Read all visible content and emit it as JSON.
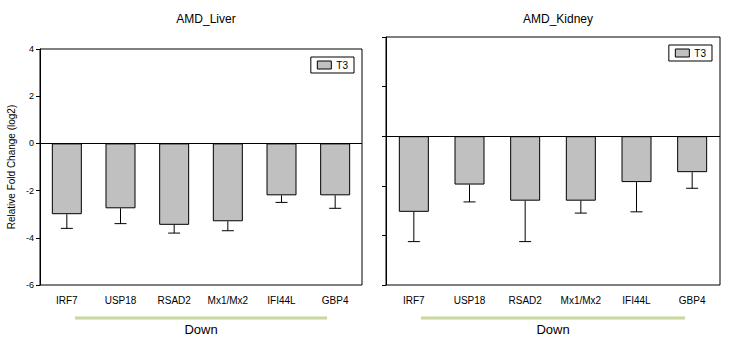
{
  "chart_data": [
    {
      "type": "bar",
      "title": "AMD_Liver",
      "ylabel": "Relative Fold Change (log2)",
      "xlabel": "Down",
      "categories": [
        "IRF7",
        "USP18",
        "RSAD2",
        "Mx1/Mx2",
        "IFI44L",
        "GBP4"
      ],
      "series": [
        {
          "name": "T3",
          "color": "#c0c0c0",
          "values": [
            -3.0,
            -2.75,
            -3.45,
            -3.3,
            -2.2,
            -2.2
          ],
          "errors": [
            0.6,
            0.65,
            0.35,
            0.4,
            0.3,
            0.55
          ]
        }
      ],
      "ylim": [
        -6,
        4
      ],
      "yticks": [
        -6,
        -4,
        -2,
        0,
        2,
        4
      ],
      "legend": "upper right"
    },
    {
      "type": "bar",
      "title": "AMD_Kidney",
      "xlabel": "Down",
      "categories": [
        "IRF7",
        "USP18",
        "RSAD2",
        "Mx1/Mx2",
        "IFI44L",
        "GBP4"
      ],
      "series": [
        {
          "name": "T3",
          "color": "#c0c0c0",
          "values": [
            -3.05,
            -1.95,
            -2.6,
            -2.6,
            -1.85,
            -1.45
          ],
          "errors": [
            1.2,
            0.7,
            1.65,
            0.5,
            1.2,
            0.65
          ]
        }
      ],
      "ylim": [
        -6,
        4
      ],
      "yticks": [
        -6,
        -4,
        -2,
        0,
        2,
        4
      ],
      "legend": "upper right",
      "tick_labels": "x"
    }
  ]
}
